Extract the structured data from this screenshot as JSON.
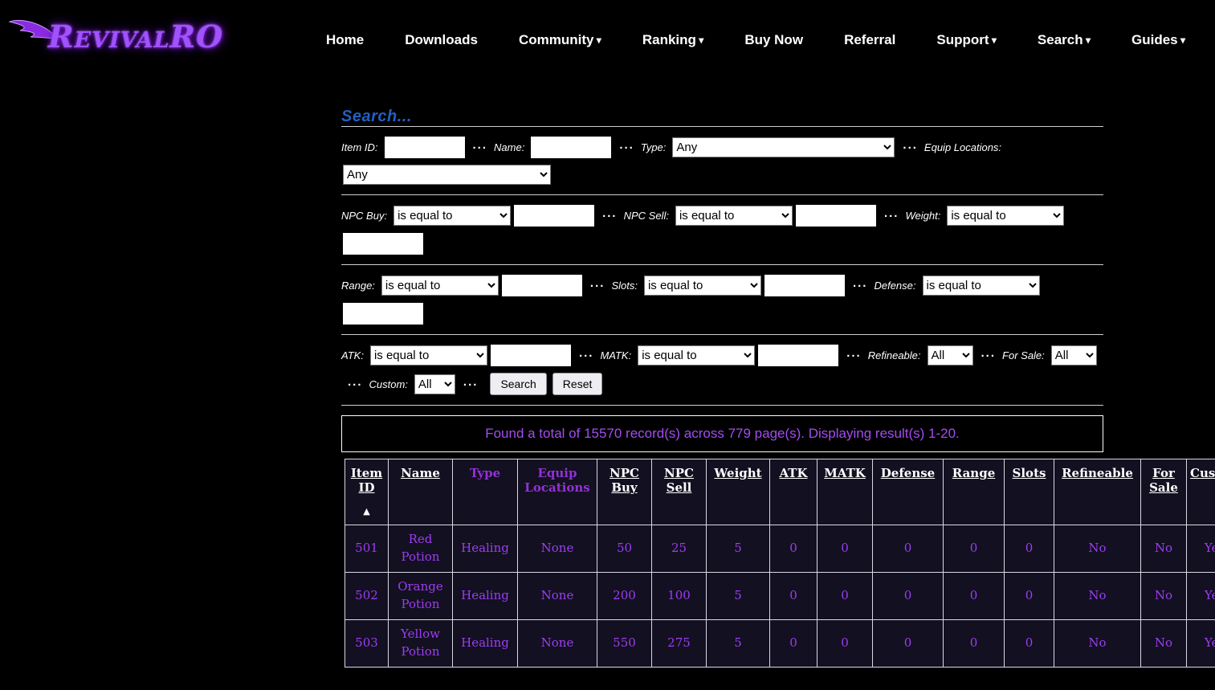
{
  "brand": {
    "logo_text": "RevivalRO"
  },
  "nav": {
    "items": [
      {
        "label": "Home",
        "dropdown": false
      },
      {
        "label": "Downloads",
        "dropdown": false
      },
      {
        "label": "Community",
        "dropdown": true
      },
      {
        "label": "Ranking",
        "dropdown": true
      },
      {
        "label": "Buy Now",
        "dropdown": false
      },
      {
        "label": "Referral",
        "dropdown": false
      },
      {
        "label": "Support",
        "dropdown": true
      },
      {
        "label": "Search",
        "dropdown": true
      },
      {
        "label": "Guides",
        "dropdown": true
      }
    ]
  },
  "search": {
    "title": "Search...",
    "separator": "...",
    "fields": {
      "item_id_label": "Item ID:",
      "name_label": "Name:",
      "type_label": "Type:",
      "type_value": "Any",
      "equip_locations_label": "Equip Locations:",
      "equip_locations_value": "Any",
      "npc_buy_label": "NPC Buy:",
      "npc_sell_label": "NPC Sell:",
      "weight_label": "Weight:",
      "range_label": "Range:",
      "slots_label": "Slots:",
      "defense_label": "Defense:",
      "atk_label": "ATK:",
      "matk_label": "MATK:",
      "refineable_label": "Refineable:",
      "refineable_value": "All",
      "for_sale_label": "For Sale:",
      "for_sale_value": "All",
      "custom_label": "Custom:",
      "custom_value": "All",
      "comparator_value": "is equal to"
    },
    "buttons": {
      "search": "Search",
      "reset": "Reset"
    }
  },
  "results": {
    "summary": "Found a total of 15570 record(s) across 779 page(s). Displaying result(s) 1-20.",
    "table": {
      "columns": [
        {
          "label": "Item ID",
          "visited": false,
          "sort": "asc"
        },
        {
          "label": "Name",
          "visited": false
        },
        {
          "label": "Type",
          "visited": true
        },
        {
          "label": "Equip Locations",
          "visited": true
        },
        {
          "label": "NPC Buy",
          "visited": false
        },
        {
          "label": "NPC Sell",
          "visited": false
        },
        {
          "label": "Weight",
          "visited": false
        },
        {
          "label": "ATK",
          "visited": false
        },
        {
          "label": "MATK",
          "visited": false
        },
        {
          "label": "Defense",
          "visited": false
        },
        {
          "label": "Range",
          "visited": false
        },
        {
          "label": "Slots",
          "visited": false
        },
        {
          "label": "Refineable",
          "visited": false
        },
        {
          "label": "For Sale",
          "visited": false
        },
        {
          "label": "Custom",
          "visited": false
        }
      ],
      "rows": [
        [
          "501",
          "Red Potion",
          "Healing",
          "None",
          "50",
          "25",
          "5",
          "0",
          "0",
          "0",
          "0",
          "0",
          "No",
          "No",
          "Yes"
        ],
        [
          "502",
          "Orange Potion",
          "Healing",
          "None",
          "200",
          "100",
          "5",
          "0",
          "0",
          "0",
          "0",
          "0",
          "No",
          "No",
          "Yes"
        ],
        [
          "503",
          "Yellow Potion",
          "Healing",
          "None",
          "550",
          "275",
          "5",
          "0",
          "0",
          "0",
          "0",
          "0",
          "No",
          "No",
          "Yes"
        ]
      ]
    }
  },
  "colors": {
    "accent_purple": "#9c3df2",
    "visited_purple": "#9431d6",
    "title_blue": "#2160c0",
    "table_bg": "#131021",
    "page_bg": "#000000"
  }
}
